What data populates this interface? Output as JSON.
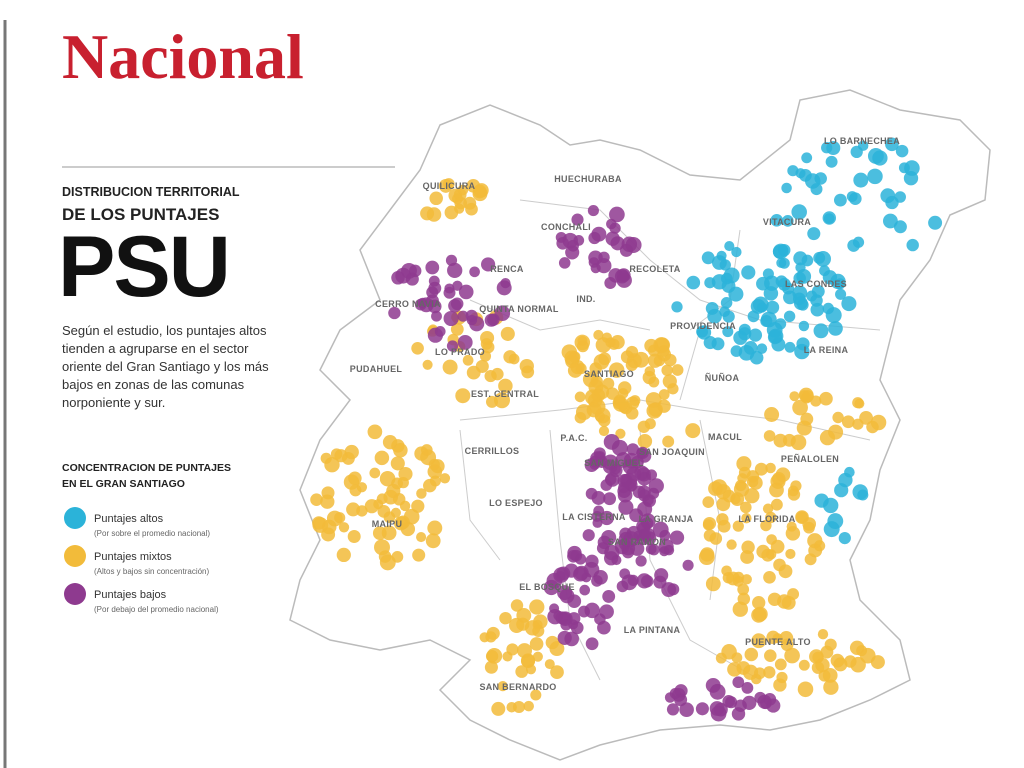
{
  "header": {
    "title": "Nacional"
  },
  "sidebar": {
    "kicker": [
      "DISTRIBUCION TERRITORIAL",
      "DE LOS PUNTAJES"
    ],
    "headline": "PSU",
    "description": "Según el estudio, los puntajes altos tienden a agruparse en el sector oriente del Gran Santiago y los más bajos en zonas de las comunas norponiente y sur."
  },
  "legend": {
    "title": [
      "CONCENTRACION DE PUNTAJES",
      "EN EL GRAN SANTIAGO"
    ],
    "items": [
      {
        "label": "Puntajes altos",
        "note": "(Por sobre el promedio nacional)",
        "color": "#2bb3d9"
      },
      {
        "label": "Puntajes mixtos",
        "note": "(Altos y bajos sin concentración)",
        "color": "#f2bb3a"
      },
      {
        "label": "Puntajes bajos",
        "note": "(Por debajo del promedio nacional)",
        "color": "#8e3a8f"
      }
    ]
  },
  "map": {
    "communes": [
      "QUILICURA",
      "HUECHURABA",
      "CONCHALI",
      "RENCA",
      "RECOLETA",
      "IND.",
      "CERRO NAVIA",
      "QUINTA NORMAL",
      "LO PRADO",
      "PUDAHUEL",
      "SANTIAGO",
      "PROVIDENCIA",
      "ÑUÑOA",
      "LA REINA",
      "LAS CONDES",
      "VITACURA",
      "LO BARNECHEA",
      "EST. CENTRAL",
      "CERRILLOS",
      "P.A.C.",
      "SAN MIGUEL",
      "SAN JOAQUIN",
      "MACUL",
      "PEÑALOLEN",
      "LO ESPEJO",
      "LA CISTERNA",
      "LA GRANJA",
      "SAN RAMON",
      "LA FLORIDA",
      "MAIPU",
      "EL BOSQUE",
      "LA PINTANA",
      "PUENTE ALTO",
      "SAN BERNARDO"
    ]
  }
}
